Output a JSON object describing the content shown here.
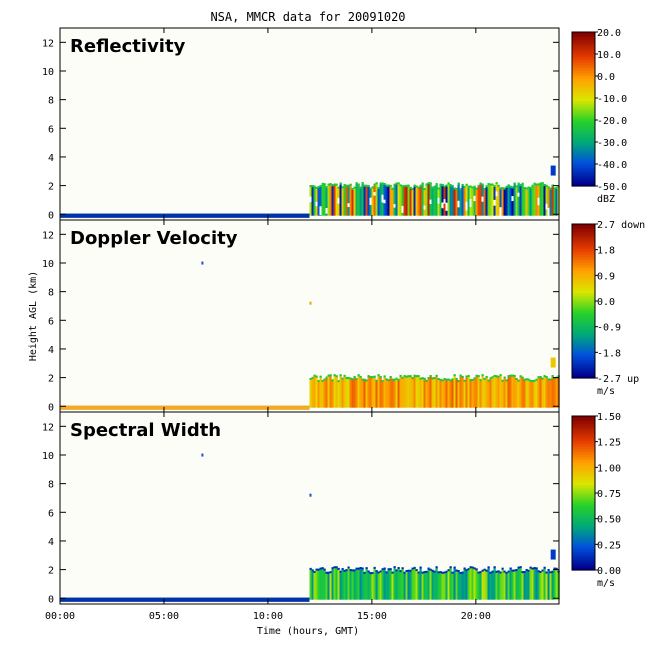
{
  "title": "NSA, MMCR data for 20091020",
  "ylabel": "Height AGL (km)",
  "xlabel": "Time (hours, GMT)",
  "colors": {
    "background": "#ffffff",
    "frame": "#000000"
  },
  "chart_data": [
    {
      "type": "heatmap",
      "title": "Reflectivity",
      "ylabel": "Height AGL (km)",
      "ylim": [
        -0.4,
        13
      ],
      "yticks": [
        0,
        2,
        4,
        6,
        8,
        10,
        12
      ],
      "ytick_labels": [
        "0",
        "2",
        "4",
        "6",
        "8",
        "10",
        "12"
      ],
      "xlim": [
        0,
        24
      ],
      "xticks": [
        0,
        5,
        10,
        15,
        20
      ],
      "xtick_labels": [
        "00:00",
        "05:00",
        "10:00",
        "15:00",
        "20:00"
      ],
      "colorbar": {
        "unit": "dBZ",
        "range": [
          -50,
          20
        ],
        "tick_labels": [
          "20.0",
          "10.0",
          "0.0",
          "-10.0",
          "-20.0",
          "-30.0",
          "-40.0",
          "-50.0"
        ]
      },
      "cloud_layer": {
        "x_start": 12.0,
        "x_end": 24.0,
        "top_km": 2.1,
        "dominant": "mixed"
      },
      "colormap": "rainbow"
    },
    {
      "type": "heatmap",
      "title": "Doppler Velocity",
      "ylabel": "Height AGL (km)",
      "ylim": [
        -0.4,
        13
      ],
      "yticks": [
        0,
        2,
        4,
        6,
        8,
        10,
        12
      ],
      "ytick_labels": [
        "0",
        "2",
        "4",
        "6",
        "8",
        "10",
        "12"
      ],
      "xlim": [
        0,
        24
      ],
      "xticks": [
        0,
        5,
        10,
        15,
        20
      ],
      "xtick_labels": [
        "00:00",
        "05:00",
        "10:00",
        "15:00",
        "20:00"
      ],
      "colorbar": {
        "unit": "m/s",
        "range": [
          -2.7,
          2.7
        ],
        "tick_labels": [
          "2.7 down",
          "1.8",
          "0.9",
          "0.0",
          "-0.9",
          "-1.8",
          "-2.7 up"
        ]
      },
      "cloud_layer": {
        "x_start": 12.0,
        "x_end": 24.0,
        "top_km": 2.1,
        "dominant": "orange"
      },
      "colormap": "rainbow"
    },
    {
      "type": "heatmap",
      "title": "Spectral Width",
      "ylabel": "Height AGL (km)",
      "ylim": [
        -0.4,
        13
      ],
      "yticks": [
        0,
        2,
        4,
        6,
        8,
        10,
        12
      ],
      "ytick_labels": [
        "0",
        "2",
        "4",
        "6",
        "8",
        "10",
        "12"
      ],
      "xlim": [
        0,
        24
      ],
      "xticks": [
        0,
        5,
        10,
        15,
        20
      ],
      "xtick_labels": [
        "00:00",
        "05:00",
        "10:00",
        "15:00",
        "20:00"
      ],
      "colorbar": {
        "unit": "m/s",
        "range": [
          0,
          1.5
        ],
        "tick_labels": [
          "1.50",
          "1.25",
          "1.00",
          "0.75",
          "0.50",
          "0.25",
          "0.00"
        ]
      },
      "cloud_layer": {
        "x_start": 12.0,
        "x_end": 24.0,
        "top_km": 2.1,
        "dominant": "green"
      },
      "colormap": "rainbow"
    }
  ]
}
